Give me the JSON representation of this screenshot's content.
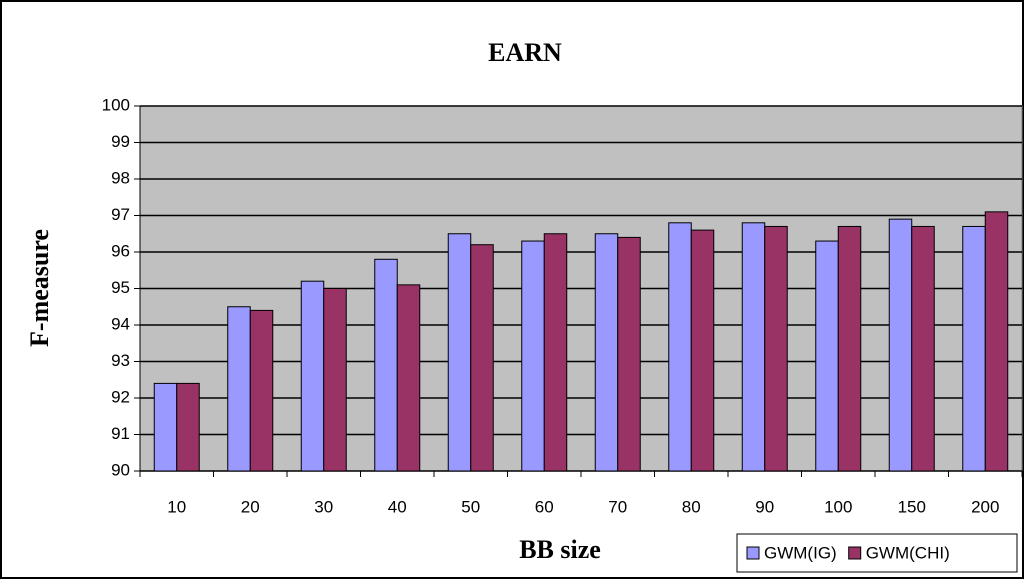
{
  "chart_data": {
    "type": "bar",
    "title": "EARN",
    "x_label": "BB size",
    "y_label": "F-measure",
    "categories": [
      "10",
      "20",
      "30",
      "40",
      "50",
      "60",
      "70",
      "80",
      "90",
      "100",
      "150",
      "200"
    ],
    "series": [
      {
        "name": "GWM(IG)",
        "color": "#9999ff",
        "values": [
          92.4,
          94.5,
          95.2,
          95.8,
          96.5,
          96.3,
          96.5,
          96.8,
          96.8,
          96.3,
          96.9,
          96.7
        ]
      },
      {
        "name": "GWM(CHI)",
        "color": "#993366",
        "values": [
          92.4,
          94.4,
          95.0,
          95.1,
          96.2,
          96.5,
          96.4,
          96.6,
          96.7,
          96.7,
          96.7,
          97.1
        ]
      }
    ],
    "ylim": [
      90,
      100
    ],
    "yticks": [
      90,
      91,
      92,
      93,
      94,
      95,
      96,
      97,
      98,
      99,
      100
    ],
    "grid": true,
    "plot_background": "#c0c0c0",
    "legend": "bottom-right"
  }
}
